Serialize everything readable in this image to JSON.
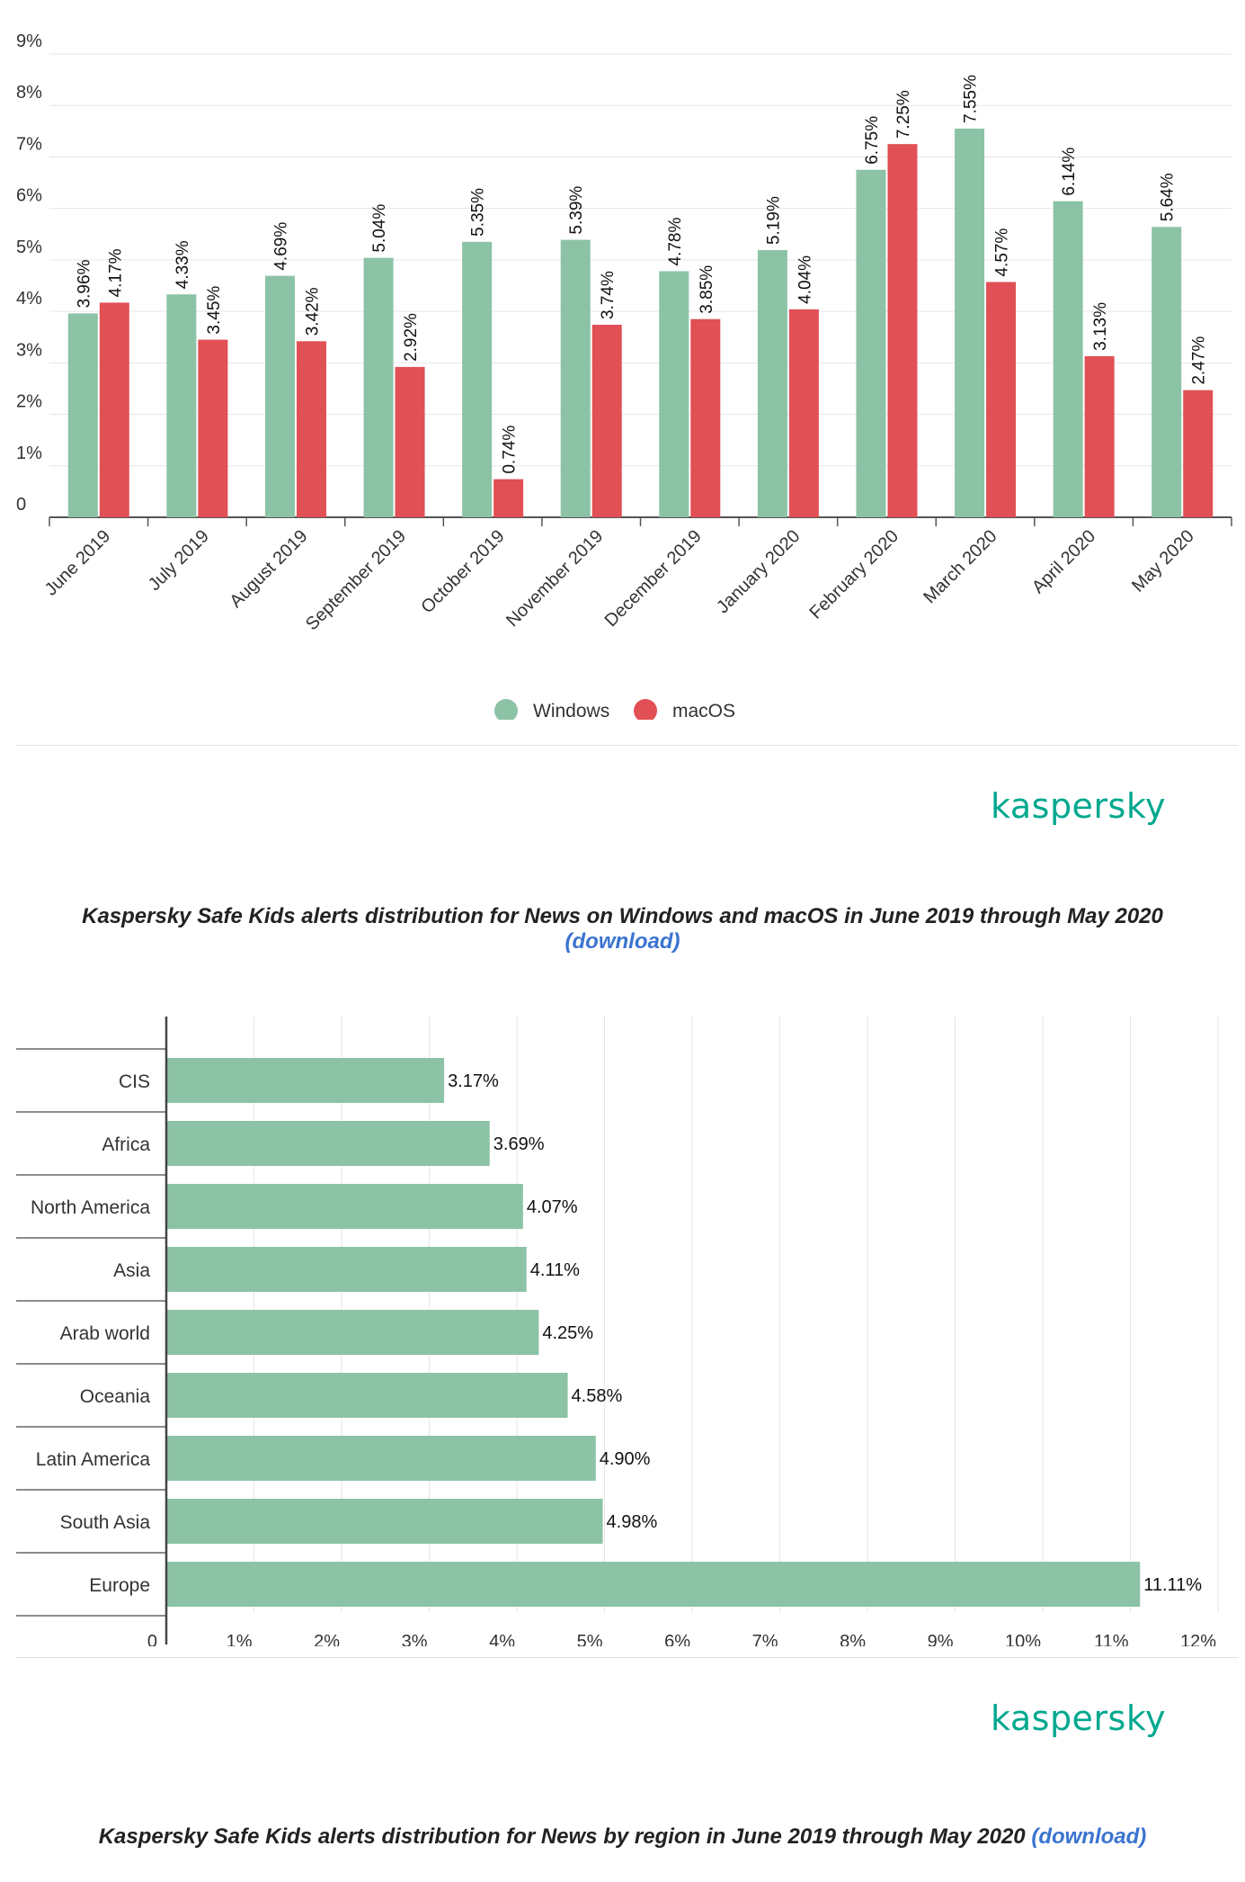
{
  "chart_data": [
    {
      "type": "bar",
      "orientation": "vertical",
      "title": "Kaspersky Safe Kids alerts distribution for News on Windows and macOS in June 2019 through May 2020",
      "categories": [
        "June 2019",
        "July 2019",
        "August 2019",
        "September 2019",
        "October 2019",
        "November 2019",
        "December 2019",
        "January 2020",
        "February 2020",
        "March 2020",
        "April 2020",
        "May 2020"
      ],
      "series": [
        {
          "name": "Windows",
          "color": "#8cc2a5",
          "values": [
            3.96,
            4.33,
            4.69,
            5.04,
            5.35,
            5.39,
            4.78,
            5.19,
            6.75,
            7.55,
            6.14,
            5.64
          ],
          "labels": [
            "3.96%",
            "4.33%",
            "4.69%",
            "5.04%",
            "5.35%",
            "5.39%",
            "4.78%",
            "5.19%",
            "6.75%",
            "7.55%",
            "6.14%",
            "5.64%"
          ]
        },
        {
          "name": "macOS",
          "color": "#e05055",
          "values": [
            4.17,
            3.45,
            3.42,
            2.92,
            0.74,
            3.74,
            3.85,
            4.04,
            7.25,
            4.57,
            3.13,
            2.47
          ],
          "labels": [
            "4.17%",
            "3.45%",
            "3.42%",
            "2.92%",
            "0.74%",
            "3.74%",
            "3.85%",
            "4.04%",
            "7.25%",
            "4.57%",
            "3.13%",
            "2.47%"
          ]
        }
      ],
      "ylim": [
        0,
        9
      ],
      "yticks": [
        "0",
        "1%",
        "2%",
        "3%",
        "4%",
        "5%",
        "6%",
        "7%",
        "8%",
        "9%"
      ],
      "legend": "bottom-center",
      "grid": true
    },
    {
      "type": "bar",
      "orientation": "horizontal",
      "title": "Kaspersky Safe Kids alerts distribution for News by region in June 2019 through May 2020",
      "categories": [
        "CIS",
        "Africa",
        "North America",
        "Asia",
        "Arab world",
        "Oceania",
        "Latin America",
        "South Asia",
        "Europe"
      ],
      "values": [
        3.17,
        3.69,
        4.07,
        4.11,
        4.25,
        4.58,
        4.9,
        4.98,
        11.11
      ],
      "labels": [
        "3.17%",
        "3.69%",
        "4.07%",
        "4.11%",
        "4.25%",
        "4.58%",
        "4.90%",
        "4.98%",
        "11.11%"
      ],
      "color": "#8cc2a5",
      "xlim": [
        0,
        12
      ],
      "xticks": [
        "0",
        "1%",
        "2%",
        "3%",
        "4%",
        "5%",
        "6%",
        "7%",
        "8%",
        "9%",
        "10%",
        "11%",
        "12%"
      ],
      "grid": true
    }
  ],
  "branding": {
    "logo1": "kaspersky",
    "logo2": "kaspersky",
    "color": "#00a88e"
  },
  "captions": {
    "c1_text": "Kaspersky Safe Kids alerts distribution for News on Windows and macOS in June 2019 through May 2020",
    "c1_link": "(download)",
    "c2_text": "Kaspersky Safe Kids alerts distribution for News by region in June 2019 through May 2020",
    "c2_link": "(download)"
  }
}
